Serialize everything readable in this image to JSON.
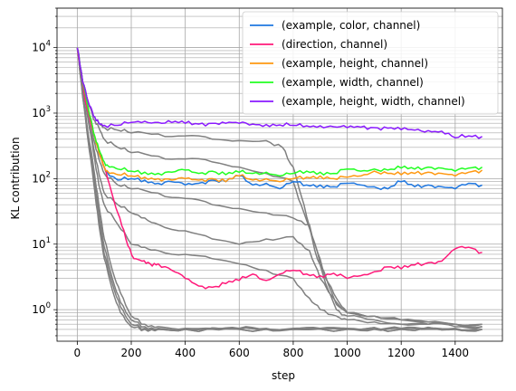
{
  "chart_data": {
    "type": "line",
    "xlabel": "step",
    "ylabel": "KL contribution",
    "xlim": [
      -75,
      1575
    ],
    "ylim": [
      0.33,
      40000
    ],
    "yscale": "log",
    "grid": true,
    "legend_position": "top-right",
    "x_ticks": [
      0,
      200,
      400,
      600,
      800,
      1000,
      1200,
      1400
    ],
    "x_tick_labels": [
      "0",
      "200",
      "400",
      "600",
      "800",
      "1000",
      "1200",
      "1400"
    ],
    "y_ticks": [
      1,
      10,
      100,
      1000,
      10000
    ],
    "y_tick_labels": [
      {
        "base": "10",
        "exp": "0"
      },
      {
        "base": "10",
        "exp": "1"
      },
      {
        "base": "10",
        "exp": "2"
      },
      {
        "base": "10",
        "exp": "3"
      },
      {
        "base": "10",
        "exp": "4"
      }
    ],
    "series": [
      {
        "name": "(example, color, channel)",
        "color": "#1f77e0",
        "x": [
          0,
          20,
          40,
          60,
          80,
          100,
          120,
          150,
          200,
          250,
          300,
          350,
          400,
          450,
          500,
          550,
          600,
          650,
          700,
          750,
          800,
          850,
          900,
          950,
          1000,
          1050,
          1100,
          1150,
          1200,
          1250,
          1300,
          1350,
          1400,
          1450,
          1500
        ],
        "y": [
          10000,
          3000,
          1200,
          500,
          250,
          150,
          110,
          95,
          100,
          95,
          85,
          90,
          80,
          85,
          95,
          90,
          110,
          80,
          85,
          70,
          90,
          80,
          80,
          75,
          85,
          80,
          75,
          70,
          90,
          75,
          80,
          75,
          70,
          85,
          80
        ]
      },
      {
        "name": "(direction, channel)",
        "color": "#ff1a7a",
        "x": [
          0,
          30,
          60,
          90,
          120,
          150,
          180,
          210,
          240,
          270,
          300,
          350,
          400,
          450,
          500,
          550,
          600,
          650,
          700,
          750,
          800,
          850,
          900,
          950,
          1000,
          1050,
          1100,
          1150,
          1200,
          1250,
          1300,
          1350,
          1400,
          1450,
          1500
        ],
        "y": [
          10000,
          1500,
          500,
          200,
          80,
          30,
          12,
          6,
          5.5,
          5,
          5,
          4,
          3,
          2.3,
          2.2,
          2.5,
          2.8,
          3.5,
          2.8,
          3.5,
          4,
          3.5,
          3.3,
          3.6,
          3.0,
          3.3,
          3.8,
          4.5,
          4.2,
          4.8,
          5.2,
          5.5,
          8.5,
          9,
          7.5
        ]
      },
      {
        "name": "(example, height, channel)",
        "color": "#ff9912",
        "x": [
          0,
          20,
          40,
          60,
          80,
          100,
          120,
          150,
          200,
          250,
          300,
          350,
          400,
          450,
          500,
          550,
          600,
          650,
          700,
          750,
          800,
          850,
          900,
          950,
          1000,
          1050,
          1100,
          1150,
          1200,
          1250,
          1300,
          1350,
          1400,
          1450,
          1500
        ],
        "y": [
          10000,
          3000,
          1200,
          500,
          250,
          150,
          120,
          115,
          110,
          105,
          100,
          95,
          100,
          95,
          100,
          90,
          110,
          95,
          100,
          90,
          100,
          105,
          110,
          100,
          105,
          110,
          130,
          120,
          115,
          120,
          125,
          120,
          110,
          125,
          135
        ]
      },
      {
        "name": "(example, width, channel)",
        "color": "#22ff22",
        "x": [
          0,
          20,
          40,
          60,
          80,
          100,
          120,
          150,
          200,
          250,
          300,
          350,
          400,
          450,
          500,
          550,
          600,
          650,
          700,
          750,
          800,
          850,
          900,
          950,
          1000,
          1050,
          1100,
          1150,
          1200,
          1250,
          1300,
          1350,
          1400,
          1450,
          1500
        ],
        "y": [
          10000,
          3000,
          1200,
          500,
          280,
          180,
          150,
          140,
          130,
          125,
          120,
          125,
          135,
          120,
          130,
          115,
          125,
          120,
          125,
          110,
          120,
          130,
          125,
          120,
          140,
          130,
          140,
          135,
          145,
          140,
          150,
          145,
          130,
          145,
          150
        ]
      },
      {
        "name": "(example, height, width, channel)",
        "color": "#8a1aff",
        "x": [
          0,
          20,
          40,
          60,
          80,
          100,
          150,
          200,
          250,
          300,
          350,
          400,
          450,
          500,
          550,
          600,
          650,
          700,
          750,
          800,
          850,
          900,
          950,
          1000,
          1050,
          1100,
          1150,
          1200,
          1250,
          1300,
          1350,
          1400,
          1450,
          1500
        ],
        "y": [
          10000,
          3000,
          1500,
          900,
          700,
          650,
          650,
          720,
          750,
          720,
          720,
          700,
          680,
          700,
          700,
          700,
          680,
          670,
          660,
          650,
          640,
          640,
          620,
          600,
          610,
          600,
          590,
          560,
          550,
          540,
          530,
          420,
          450,
          440
        ]
      }
    ],
    "background_lines": {
      "color": "#808080",
      "lines": [
        {
          "x": [
            0,
            20,
            40,
            60,
            80,
            100,
            150,
            200,
            300,
            400,
            500,
            600,
            700,
            760,
            800,
            840,
            880,
            920,
            960,
            1000,
            1100,
            1200,
            1300,
            1400,
            1500
          ],
          "y": [
            10000,
            3000,
            1500,
            900,
            700,
            600,
            550,
            500,
            480,
            450,
            400,
            380,
            380,
            300,
            150,
            40,
            8,
            2.5,
            1.0,
            0.8,
            0.7,
            0.6,
            0.6,
            0.55,
            0.55
          ]
        },
        {
          "x": [
            0,
            20,
            40,
            60,
            80,
            100,
            150,
            200,
            300,
            400,
            500,
            600,
            700,
            800,
            840,
            880,
            920,
            960,
            1000,
            1100,
            1200,
            1300,
            1400,
            1500
          ],
          "y": [
            10000,
            3000,
            1500,
            800,
            600,
            400,
            300,
            250,
            220,
            200,
            180,
            150,
            120,
            90,
            30,
            10,
            3,
            1.5,
            0.9,
            0.8,
            0.7,
            0.6,
            0.6,
            0.55
          ]
        },
        {
          "x": [
            0,
            20,
            40,
            60,
            80,
            100,
            150,
            200,
            300,
            400,
            500,
            600,
            700,
            800,
            860,
            900,
            960,
            1000,
            1100,
            1200,
            1300,
            1400,
            1500
          ],
          "y": [
            10000,
            3000,
            1200,
            400,
            200,
            120,
            80,
            70,
            60,
            50,
            40,
            35,
            30,
            25,
            20,
            5,
            1.2,
            0.9,
            0.8,
            0.7,
            0.65,
            0.6,
            0.6
          ]
        },
        {
          "x": [
            0,
            20,
            40,
            60,
            80,
            100,
            150,
            200,
            250,
            300,
            400,
            500,
            600,
            700,
            800,
            860,
            900,
            960,
            1000,
            1100,
            1200,
            1300,
            1400,
            1500
          ],
          "y": [
            10000,
            2500,
            900,
            300,
            120,
            60,
            40,
            30,
            25,
            20,
            16,
            12,
            10,
            12,
            13,
            8,
            3,
            1.3,
            0.9,
            0.8,
            0.7,
            0.65,
            0.6,
            0.6
          ]
        },
        {
          "x": [
            0,
            20,
            40,
            60,
            80,
            100,
            150,
            200,
            250,
            300,
            400,
            500,
            600,
            700,
            800,
            860,
            900,
            960,
            1000,
            1100,
            1200,
            1300,
            1400,
            1500
          ],
          "y": [
            10000,
            2500,
            800,
            250,
            80,
            40,
            20,
            10,
            9,
            8,
            7,
            6,
            5,
            4,
            3,
            1.5,
            1.0,
            0.8,
            0.7,
            0.65,
            0.6,
            0.6,
            0.6,
            0.55
          ]
        },
        {
          "x": [
            0,
            20,
            40,
            60,
            80,
            100,
            130,
            160,
            200,
            250,
            300,
            400,
            500,
            600,
            700,
            800,
            900,
            1000,
            1100,
            1200,
            1300,
            1400,
            1500
          ],
          "y": [
            10000,
            2000,
            500,
            150,
            40,
            12,
            4,
            1.8,
            0.8,
            0.6,
            0.55,
            0.52,
            0.52,
            0.52,
            0.52,
            0.52,
            0.52,
            0.52,
            0.52,
            0.52,
            0.52,
            0.52,
            0.5
          ]
        },
        {
          "x": [
            0,
            20,
            40,
            60,
            80,
            100,
            130,
            160,
            200,
            250,
            300,
            400,
            500,
            600,
            700,
            800,
            900,
            1000,
            1100,
            1200,
            1300,
            1400,
            1500
          ],
          "y": [
            10000,
            2000,
            450,
            120,
            30,
            9,
            3,
            1.3,
            0.7,
            0.55,
            0.52,
            0.5,
            0.5,
            0.5,
            0.5,
            0.5,
            0.5,
            0.5,
            0.5,
            0.5,
            0.5,
            0.5,
            0.5
          ]
        },
        {
          "x": [
            0,
            20,
            40,
            60,
            80,
            100,
            130,
            160,
            200,
            250,
            300,
            400,
            600,
            800,
            1000,
            1200,
            1400,
            1500
          ],
          "y": [
            10000,
            1800,
            400,
            100,
            25,
            7,
            2.5,
            1.1,
            0.6,
            0.52,
            0.5,
            0.5,
            0.5,
            0.5,
            0.5,
            0.5,
            0.5,
            0.5
          ]
        },
        {
          "x": [
            0,
            20,
            40,
            60,
            80,
            100,
            130,
            160,
            200,
            250,
            300,
            400,
            600,
            800,
            1000,
            1200,
            1400,
            1500
          ],
          "y": [
            10000,
            1800,
            380,
            90,
            20,
            6,
            2.0,
            0.9,
            0.55,
            0.5,
            0.5,
            0.5,
            0.5,
            0.5,
            0.5,
            0.5,
            0.5,
            0.5
          ]
        }
      ]
    }
  }
}
